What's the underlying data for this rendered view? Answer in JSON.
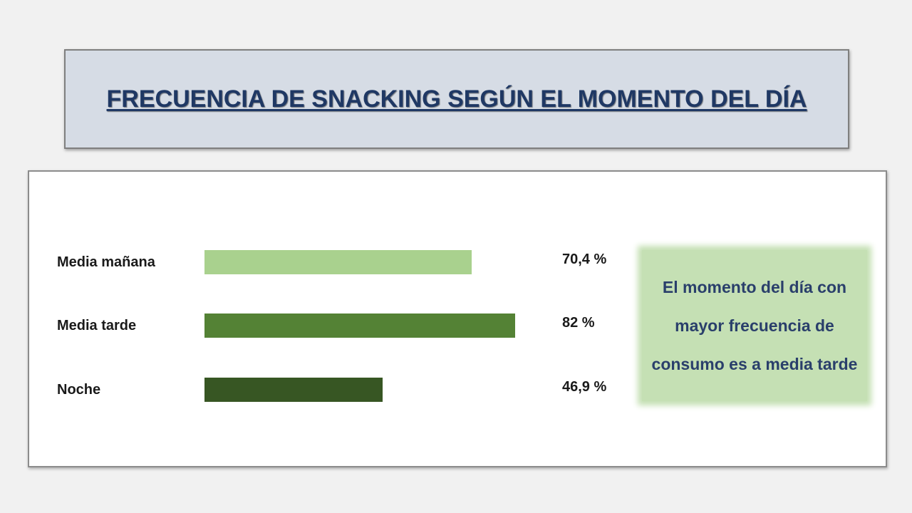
{
  "title": "FRECUENCIA DE SNACKING SEGÚN EL MOMENTO DEL DÍA",
  "callout": "El momento del día con mayor frecuencia de consumo es a media tarde",
  "chart_data": {
    "type": "bar",
    "orientation": "horizontal",
    "categories": [
      "Media mañana",
      "Media tarde",
      "Noche"
    ],
    "values": [
      70.4,
      82,
      46.9
    ],
    "value_labels": [
      "70,4 %",
      "82 %",
      "46,9 %"
    ],
    "unit": "%",
    "colors": [
      "#a9d18e",
      "#548235",
      "#375623"
    ],
    "xlim": [
      0,
      100
    ],
    "grid": false,
    "legend": "none"
  }
}
